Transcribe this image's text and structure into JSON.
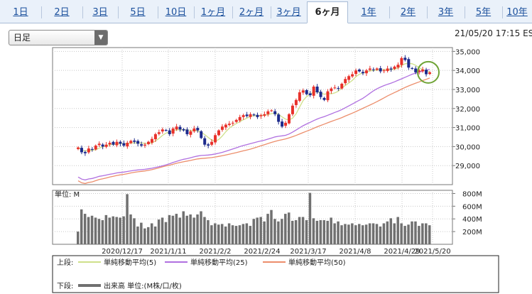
{
  "tabs": [
    {
      "label": "1日",
      "active": false
    },
    {
      "label": "2日",
      "active": false
    },
    {
      "label": "3日",
      "active": false
    },
    {
      "label": "5日",
      "active": false
    },
    {
      "label": "10日",
      "active": false
    },
    {
      "label": "1ヶ月",
      "active": false
    },
    {
      "label": "2ヶ月",
      "active": false
    },
    {
      "label": "3ヶ月",
      "active": false
    },
    {
      "label": "6ヶ月",
      "active": true
    },
    {
      "label": "1年",
      "active": false
    },
    {
      "label": "2年",
      "active": false
    },
    {
      "label": "3年",
      "active": false
    },
    {
      "label": "5年",
      "active": false
    },
    {
      "label": "10年",
      "active": false
    }
  ],
  "period_select": {
    "value": "日足"
  },
  "timestamp": "21/05/20 17:15 ES",
  "colors": {
    "up": "#e8312a",
    "down": "#1c2a8c",
    "ma5": "#cfe08a",
    "ma25": "#b070e0",
    "ma50": "#ec8e6c",
    "volume": "#707070",
    "highlight_circle": "#6fa336"
  },
  "chart_data": [
    {
      "type": "candlestick",
      "y_ticks": [
        "35,000",
        "34,000",
        "33,000",
        "32,000",
        "31,000",
        "30,000",
        "29,000"
      ],
      "ylim": [
        28000,
        35200
      ],
      "x_tick_labels": [
        "2020/12/17",
        "2021/1/11",
        "2021/2/2",
        "2021/2/24",
        "2021/3/17",
        "2021/4/8",
        "2021/4/29",
        "2021/5/20"
      ],
      "close_approx": [
        29950,
        29700,
        29650,
        29900,
        29850,
        30050,
        30150,
        30000,
        30100,
        30200,
        30100,
        30250,
        30150,
        30050,
        30200,
        30300,
        30250,
        30150,
        30050,
        30100,
        30250,
        30400,
        30650,
        30750,
        30900,
        30850,
        30650,
        30950,
        31050,
        30900,
        30850,
        30650,
        30800,
        30950,
        30850,
        30450,
        30100,
        30050,
        30250,
        30600,
        30850,
        31050,
        31150,
        31200,
        31250,
        31400,
        31550,
        31650,
        31600,
        31700,
        31650,
        31550,
        31650,
        31700,
        31850,
        31900,
        31700,
        31300,
        31050,
        31250,
        31700,
        32150,
        32450,
        32850,
        32950,
        32750,
        32700,
        33150,
        32850,
        32600,
        32450,
        32900,
        33050,
        33100,
        33050,
        33300,
        33550,
        33700,
        33800,
        34000,
        33950,
        33850,
        34000,
        34100,
        34050,
        34100,
        33950,
        34000,
        34100,
        34050,
        34200,
        34300,
        34650,
        34550,
        34150,
        34100,
        33900,
        34000,
        34050,
        33800,
        33900
      ],
      "ma_series": [
        {
          "name": "単純移動平均(5)",
          "from": 29850,
          "to": 33950
        },
        {
          "name": "単純移動平均(25)",
          "from": 28400,
          "to": 34050
        },
        {
          "name": "単純移動平均(50)",
          "from": 28200,
          "to": 33600
        }
      ]
    },
    {
      "type": "bar",
      "title": "単位: M",
      "y_ticks": [
        "800M",
        "600M",
        "400M",
        "200M"
      ],
      "ylim": [
        0,
        850
      ],
      "values_approx": [
        200,
        550,
        480,
        430,
        450,
        420,
        400,
        380,
        460,
        420,
        440,
        430,
        420,
        440,
        790,
        470,
        410,
        280,
        340,
        250,
        270,
        330,
        280,
        390,
        420,
        350,
        460,
        450,
        480,
        420,
        520,
        450,
        470,
        420,
        470,
        520,
        430,
        380,
        300,
        330,
        310,
        320,
        280,
        330,
        300,
        290,
        300,
        320,
        330,
        290,
        400,
        420,
        430,
        360,
        480,
        540,
        400,
        360,
        400,
        480,
        500,
        370,
        380,
        430,
        430,
        380,
        810,
        410,
        370,
        380,
        380,
        370,
        420,
        330,
        360,
        300,
        320,
        310,
        330,
        300,
        320,
        300,
        310,
        330,
        330,
        320,
        280,
        330,
        360,
        410,
        330,
        430,
        330,
        290,
        310,
        360,
        360,
        290,
        330,
        330,
        300
      ]
    }
  ],
  "legend": {
    "upper_label": "上段:",
    "lower_label": "下段:",
    "items": [
      {
        "name": "単純移動平均(5)",
        "color_key": "ma5"
      },
      {
        "name": "単純移動平均(25)",
        "color_key": "ma25"
      },
      {
        "name": "単純移動平均(50)",
        "color_key": "ma50"
      }
    ],
    "volume_label": "出来高 単位:(M株/口/枚)"
  }
}
